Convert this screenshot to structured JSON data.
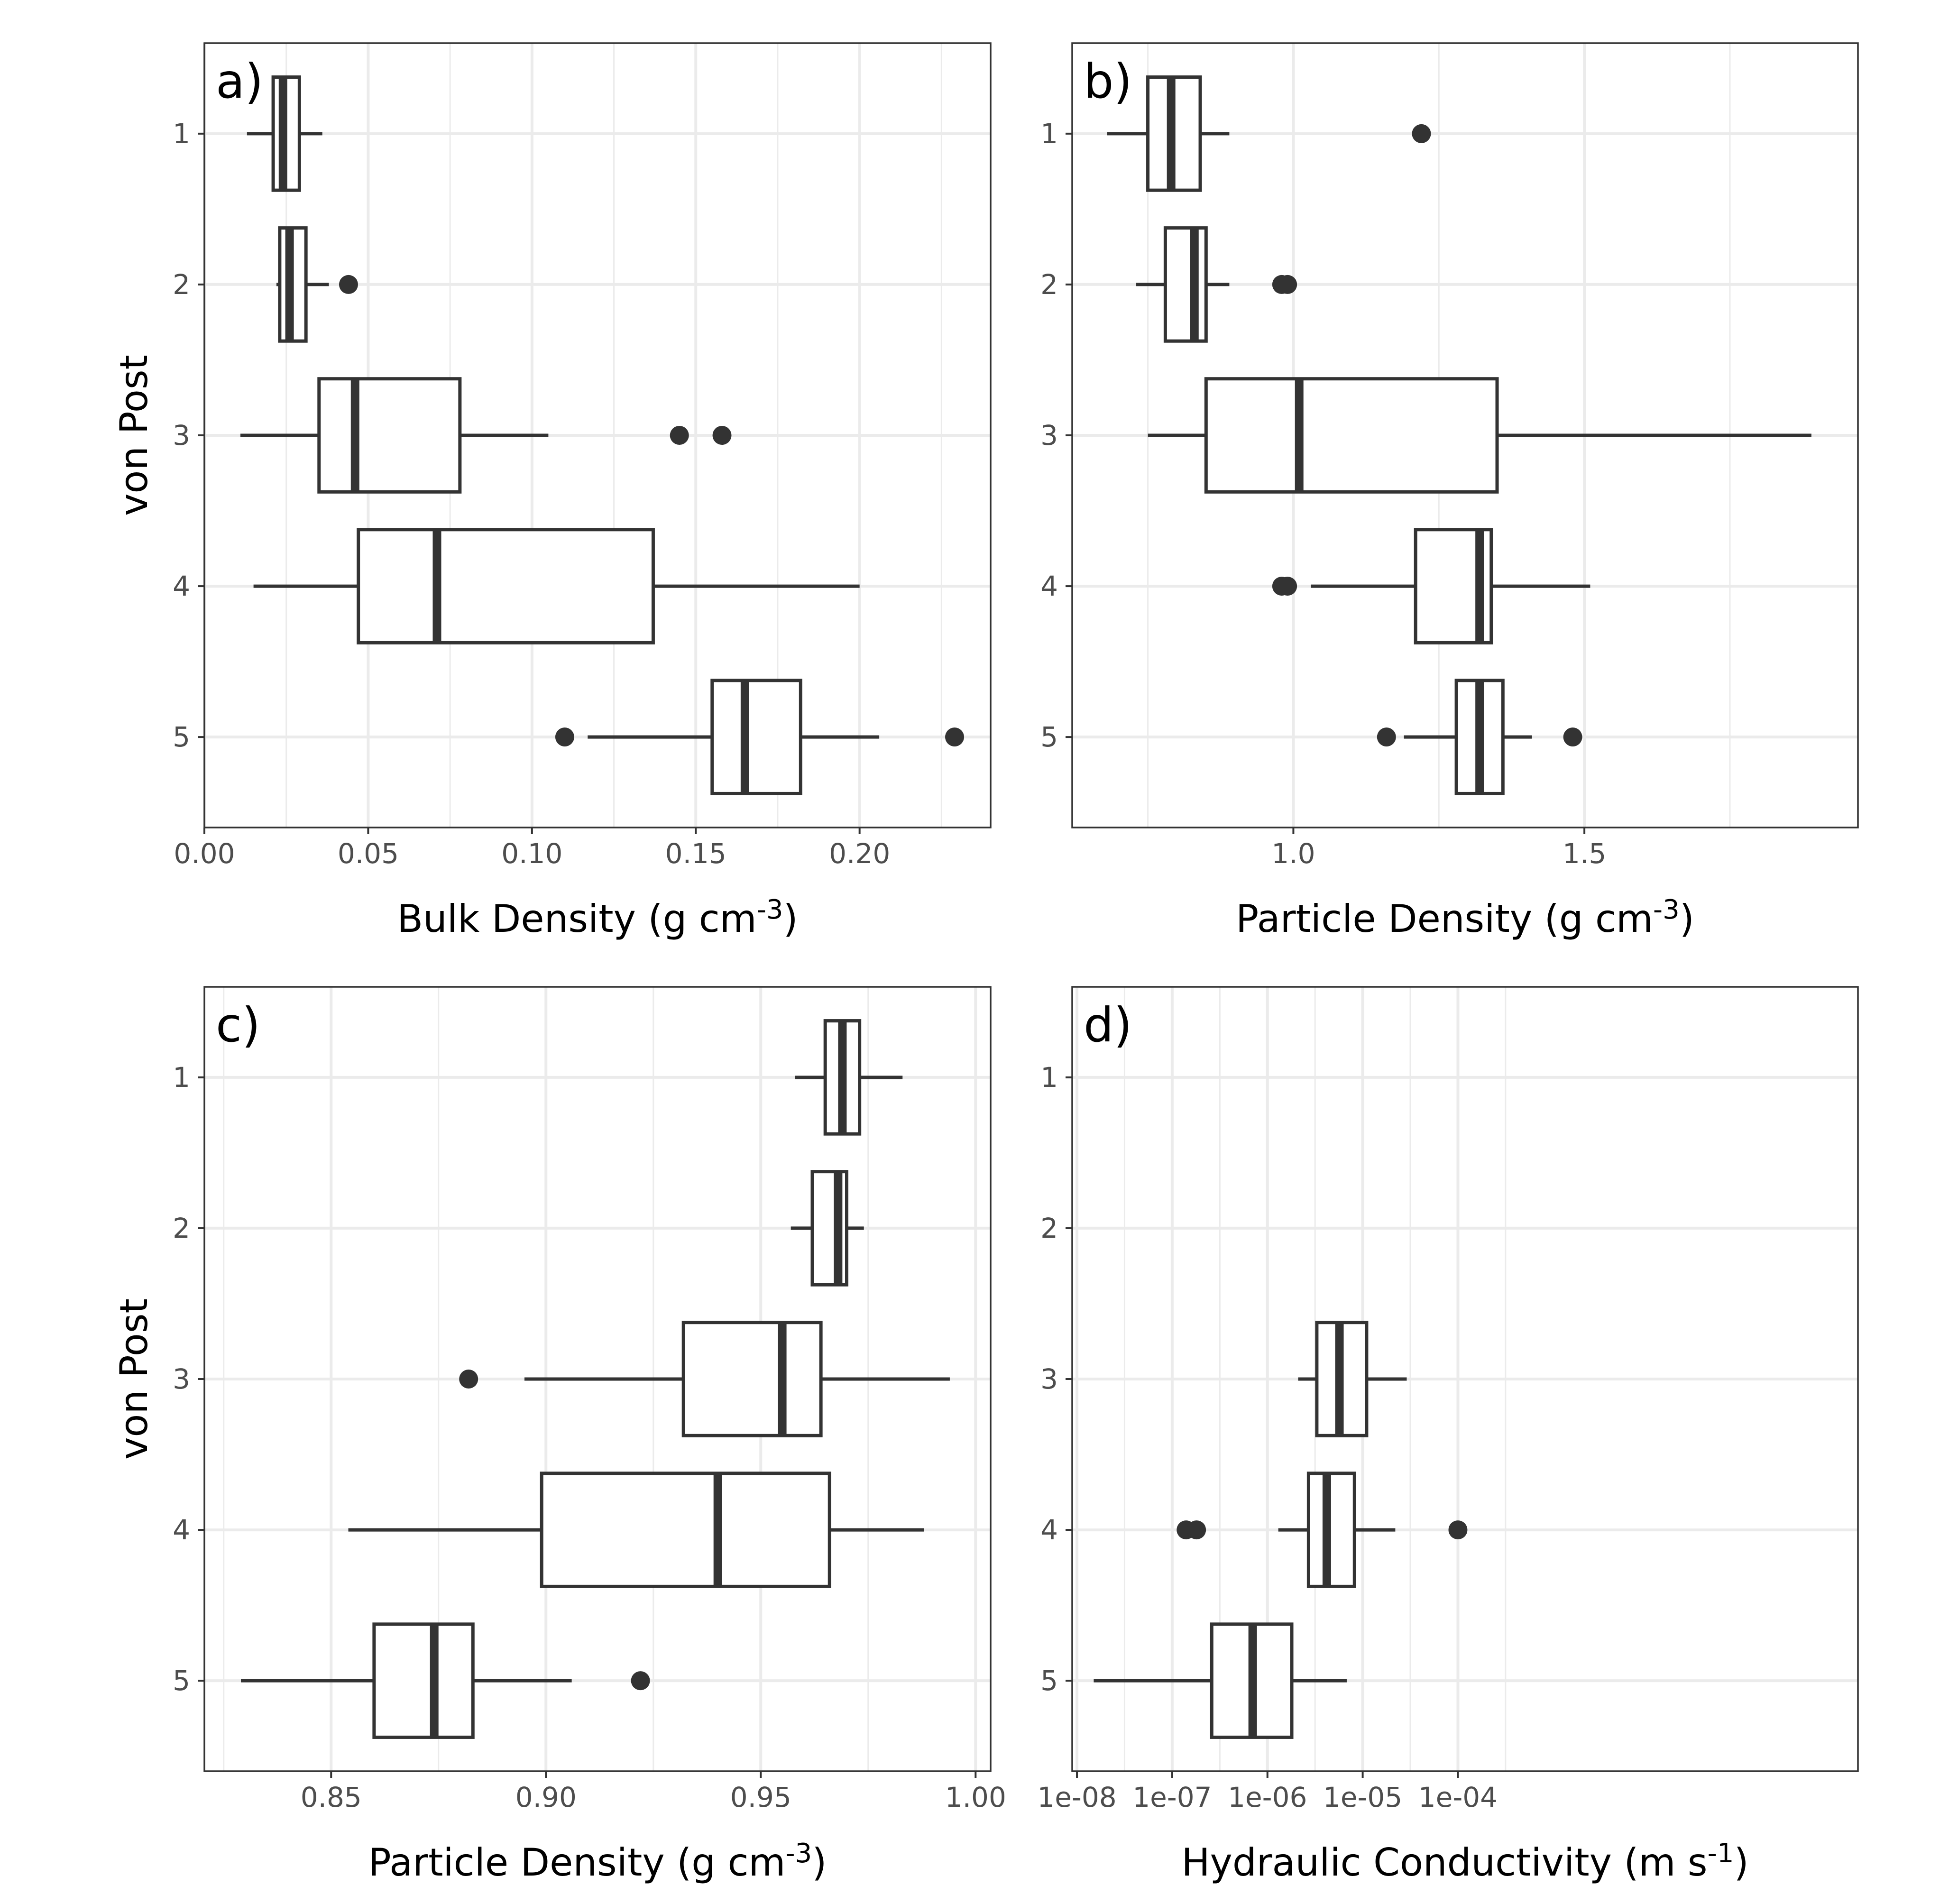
{
  "y_axis_title": "von Post",
  "chart_data": [
    {
      "type": "boxplot",
      "panel": "a)",
      "orientation": "horizontal",
      "xlabel": "Bulk Density (g cm",
      "xlabel_sup": "-3",
      "xlabel_end": ")",
      "ylabel": "von Post",
      "xscale": "linear",
      "xlim": [
        0,
        0.24
      ],
      "xticks": [
        0.0,
        0.05,
        0.1,
        0.15,
        0.2
      ],
      "xtick_labels": [
        "0.00",
        "0.05",
        "0.10",
        "0.15",
        "0.20"
      ],
      "categories": [
        "1",
        "2",
        "3",
        "4",
        "5"
      ],
      "boxes": [
        {
          "category": "1",
          "whisker_low": 0.013,
          "q1": 0.021,
          "median": 0.024,
          "q3": 0.029,
          "whisker_high": 0.036,
          "outliers": []
        },
        {
          "category": "2",
          "whisker_low": 0.022,
          "q1": 0.023,
          "median": 0.026,
          "q3": 0.031,
          "whisker_high": 0.038,
          "outliers": [
            0.044
          ]
        },
        {
          "category": "3",
          "whisker_low": 0.011,
          "q1": 0.035,
          "median": 0.046,
          "q3": 0.078,
          "whisker_high": 0.105,
          "outliers": [
            0.145,
            0.158
          ]
        },
        {
          "category": "4",
          "whisker_low": 0.015,
          "q1": 0.047,
          "median": 0.071,
          "q3": 0.137,
          "whisker_high": 0.2,
          "outliers": []
        },
        {
          "category": "5",
          "whisker_low": 0.117,
          "q1": 0.155,
          "median": 0.165,
          "q3": 0.182,
          "whisker_high": 0.206,
          "outliers": [
            0.11,
            0.229
          ]
        }
      ],
      "grid": true
    },
    {
      "type": "boxplot",
      "panel": "b)",
      "orientation": "horizontal",
      "xlabel": "Particle Density (g cm",
      "xlabel_sup": "-3",
      "xlabel_end": ")",
      "ylabel": "",
      "xscale": "linear",
      "xlim": [
        0.62,
        1.97
      ],
      "xticks": [
        1.0,
        1.5
      ],
      "xtick_labels": [
        "1.0",
        "1.5"
      ],
      "categories": [
        "1",
        "2",
        "3",
        "4",
        "5"
      ],
      "boxes": [
        {
          "category": "1",
          "whisker_low": 0.68,
          "q1": 0.75,
          "median": 0.79,
          "q3": 0.84,
          "whisker_high": 0.89,
          "outliers": [
            1.22
          ]
        },
        {
          "category": "2",
          "whisker_low": 0.73,
          "q1": 0.78,
          "median": 0.83,
          "q3": 0.85,
          "whisker_high": 0.89,
          "outliers": [
            0.98,
            0.99
          ]
        },
        {
          "category": "3",
          "whisker_low": 0.75,
          "q1": 0.85,
          "median": 1.01,
          "q3": 1.35,
          "whisker_high": 1.89,
          "outliers": []
        },
        {
          "category": "4",
          "whisker_low": 1.03,
          "q1": 1.21,
          "median": 1.32,
          "q3": 1.34,
          "whisker_high": 1.51,
          "outliers": [
            0.98,
            0.99
          ]
        },
        {
          "category": "5",
          "whisker_low": 1.19,
          "q1": 1.28,
          "median": 1.32,
          "q3": 1.36,
          "whisker_high": 1.41,
          "outliers": [
            1.16,
            1.48
          ]
        }
      ],
      "grid": true
    },
    {
      "type": "boxplot",
      "panel": "c)",
      "orientation": "horizontal",
      "xlabel": "Particle Density (g cm",
      "xlabel_sup": "-3",
      "xlabel_end": ")",
      "ylabel": "von Post",
      "xscale": "linear",
      "xlim": [
        0.8205,
        1.0035
      ],
      "xticks": [
        0.85,
        0.9,
        0.95,
        1.0
      ],
      "xtick_labels": [
        "0.85",
        "0.90",
        "0.95",
        "1.00"
      ],
      "categories": [
        "1",
        "2",
        "3",
        "4",
        "5"
      ],
      "boxes": [
        {
          "category": "1",
          "whisker_low": 0.958,
          "q1": 0.965,
          "median": 0.969,
          "q3": 0.973,
          "whisker_high": 0.983,
          "outliers": []
        },
        {
          "category": "2",
          "whisker_low": 0.957,
          "q1": 0.962,
          "median": 0.968,
          "q3": 0.97,
          "whisker_high": 0.974,
          "outliers": []
        },
        {
          "category": "3",
          "whisker_low": 0.895,
          "q1": 0.932,
          "median": 0.955,
          "q3": 0.964,
          "whisker_high": 0.994,
          "outliers": [
            0.882
          ]
        },
        {
          "category": "4",
          "whisker_low": 0.854,
          "q1": 0.899,
          "median": 0.94,
          "q3": 0.966,
          "whisker_high": 0.988,
          "outliers": []
        },
        {
          "category": "5",
          "whisker_low": 0.829,
          "q1": 0.86,
          "median": 0.874,
          "q3": 0.883,
          "whisker_high": 0.906,
          "outliers": [
            0.922
          ]
        }
      ],
      "grid": true
    },
    {
      "type": "boxplot",
      "panel": "d)",
      "orientation": "horizontal",
      "xlabel": "Hydraulic Conductivity (m s",
      "xlabel_sup": "-1",
      "xlabel_end": ")",
      "ylabel": "",
      "xscale": "log10",
      "xlim": [
        -8.05,
        0.2
      ],
      "xticks": [
        -8,
        -7,
        -6,
        -5,
        -4
      ],
      "xtick_labels": [
        "1e-08",
        "1e-07",
        "1e-06",
        "1e-05",
        "1e-04"
      ],
      "categories": [
        "1",
        "2",
        "3",
        "4",
        "5"
      ],
      "boxes": [
        {
          "category": "1",
          "whisker_low": null,
          "q1": null,
          "median": null,
          "q3": null,
          "whisker_high": null,
          "outliers": []
        },
        {
          "category": "2",
          "whisker_low": null,
          "q1": null,
          "median": null,
          "q3": null,
          "whisker_high": null,
          "outliers": []
        },
        {
          "category": "3",
          "whisker_low": 2.1e-06,
          "q1": 3.3e-06,
          "median": 5.7e-06,
          "q3": 1.1e-05,
          "whisker_high": 2.9e-05,
          "outliers": []
        },
        {
          "category": "4",
          "whisker_low": 1.3e-06,
          "q1": 2.7e-06,
          "median": 4.2e-06,
          "q3": 8.2e-06,
          "whisker_high": 2.2e-05,
          "outliers": [
            1.4e-07,
            1.8e-07,
            0.0001
          ]
        },
        {
          "category": "5",
          "whisker_low": 1.5e-08,
          "q1": 2.6e-07,
          "median": 7e-07,
          "q3": 1.8e-06,
          "whisker_high": 6.8e-06,
          "outliers": []
        }
      ],
      "grid": true
    }
  ]
}
